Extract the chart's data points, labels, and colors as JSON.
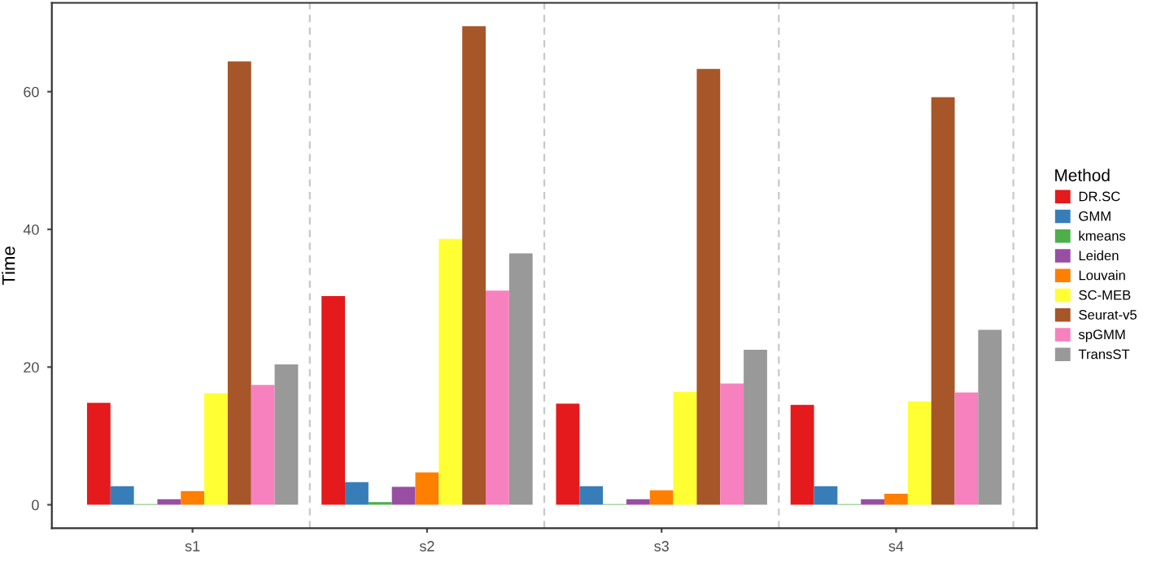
{
  "chart_data": {
    "type": "bar",
    "ylabel": "Time",
    "legend_title": "Method",
    "categories": [
      "s1",
      "s2",
      "s3",
      "s4"
    ],
    "series": [
      {
        "name": "DR.SC",
        "color": "#e41a1c",
        "values": [
          14.8,
          30.3,
          14.7,
          14.5
        ]
      },
      {
        "name": "GMM",
        "color": "#377eb8",
        "values": [
          2.7,
          3.3,
          2.7,
          2.7
        ]
      },
      {
        "name": "kmeans",
        "color": "#4daf4a",
        "values": [
          0.1,
          0.4,
          0.1,
          0.1
        ]
      },
      {
        "name": "Leiden",
        "color": "#984ea3",
        "values": [
          0.8,
          2.6,
          0.8,
          0.8
        ]
      },
      {
        "name": "Louvain",
        "color": "#ff7f00",
        "values": [
          2.0,
          4.7,
          2.1,
          1.6
        ]
      },
      {
        "name": "SC-MEB",
        "color": "#ffff33",
        "values": [
          16.2,
          38.6,
          16.4,
          15.0
        ]
      },
      {
        "name": "Seurat-v5",
        "color": "#a65628",
        "values": [
          64.4,
          69.5,
          63.3,
          59.2
        ]
      },
      {
        "name": "spGMM",
        "color": "#f781bf",
        "values": [
          17.4,
          31.1,
          17.6,
          16.3
        ]
      },
      {
        "name": "TransST",
        "color": "#999999",
        "values": [
          20.4,
          36.5,
          22.5,
          25.4
        ]
      }
    ],
    "ylim": [
      -3.4,
      72.9
    ],
    "yticks": [
      0,
      20,
      40,
      60
    ],
    "grid": false,
    "legend": "right"
  }
}
